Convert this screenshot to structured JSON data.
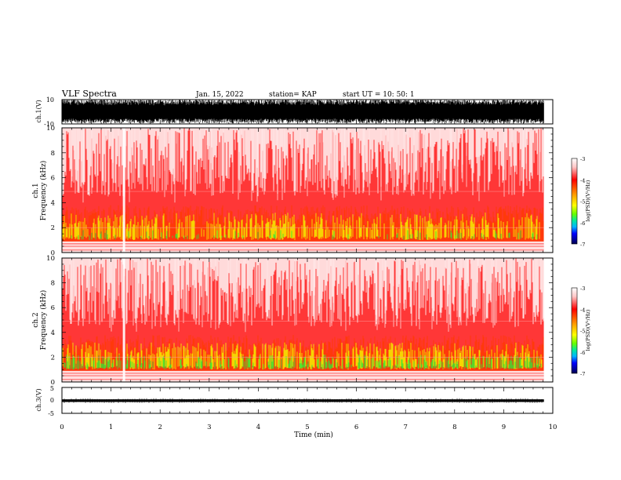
{
  "header": {
    "title": "VLF Spectra",
    "date": "Jan. 15, 2022",
    "station": "station= KAP",
    "start": "start  UT =   10: 50: 1"
  },
  "chart_data": [
    {
      "type": "line",
      "name": "ch1-waveform",
      "ylabel": "ch.1(V)",
      "ylim": [
        -10,
        10
      ],
      "yticks": [
        "10",
        "-10"
      ],
      "xlim": [
        0,
        10
      ],
      "data_end_min": 9.82,
      "envelope": "dense broadband noise oscillating between about -10 and 10 V"
    },
    {
      "type": "heatmap",
      "name": "ch1-spectrogram",
      "ylabel": "ch.1\nFrequency (kHz)",
      "ylim": [
        0,
        10
      ],
      "yticks": [
        "0",
        "2",
        "4",
        "6",
        "8",
        "10"
      ],
      "xlim": [
        0,
        10
      ],
      "colorbar": {
        "label": "log(PSD)(V²/Hz)",
        "range": [
          -7,
          -3
        ],
        "ticks": [
          "-3",
          "-4",
          "-5",
          "-6",
          "-7"
        ]
      }
    },
    {
      "type": "heatmap",
      "name": "ch2-spectrogram",
      "ylabel": "ch.2\nFrequency (kHz)",
      "ylim": [
        0,
        10
      ],
      "yticks": [
        "0",
        "2",
        "4",
        "6",
        "8",
        "10"
      ],
      "xlim": [
        0,
        10
      ],
      "colorbar": {
        "label": "log(PSD)(V²/Hz)",
        "range": [
          -7,
          -3
        ],
        "ticks": [
          "-3",
          "-4",
          "-5",
          "-6",
          "-7"
        ]
      }
    },
    {
      "type": "line",
      "name": "ch3-waveform",
      "ylabel": "ch.3(V)",
      "ylim": [
        -5,
        5
      ],
      "yticks": [
        "5",
        "0",
        "-5"
      ],
      "xlim": [
        0,
        10
      ],
      "xticks": [
        "0",
        "1",
        "2",
        "3",
        "4",
        "5",
        "6",
        "7",
        "8",
        "9",
        "10"
      ],
      "xlabel": "Time (min)",
      "band": [
        -0.6,
        0.4
      ]
    }
  ],
  "colors": {
    "red": "#ff1a1a",
    "orange": "#ff8c00",
    "yellow": "#f5f000",
    "green": "#33e633",
    "blue": "#0033ff",
    "black": "#000000"
  }
}
